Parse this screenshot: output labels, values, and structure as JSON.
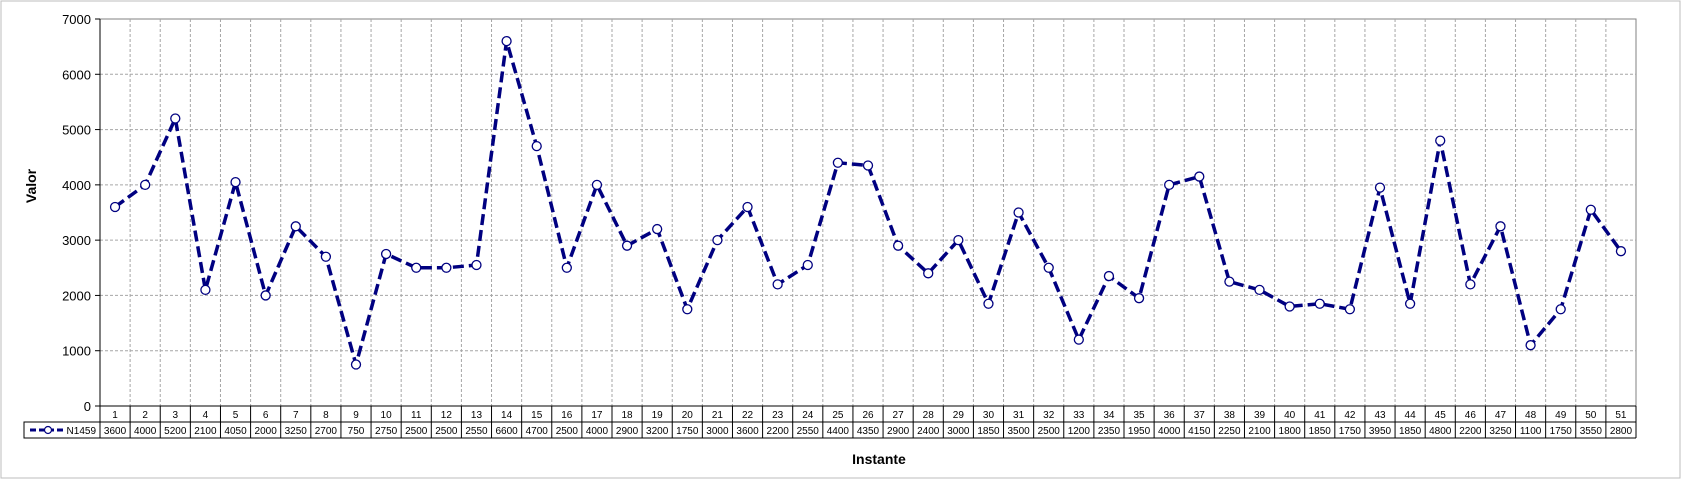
{
  "chart_data": {
    "type": "line",
    "xlabel": "Instante",
    "ylabel": "Valor",
    "ylim": [
      0,
      7000
    ],
    "yticks": [
      0,
      1000,
      2000,
      3000,
      4000,
      5000,
      6000,
      7000
    ],
    "categories": [
      "1",
      "2",
      "3",
      "4",
      "5",
      "6",
      "7",
      "8",
      "9",
      "10",
      "11",
      "12",
      "13",
      "14",
      "15",
      "16",
      "17",
      "18",
      "19",
      "20",
      "21",
      "22",
      "23",
      "24",
      "25",
      "26",
      "27",
      "28",
      "29",
      "30",
      "31",
      "32",
      "33",
      "34",
      "35",
      "36",
      "37",
      "38",
      "39",
      "40",
      "41",
      "42",
      "43",
      "44",
      "45",
      "46",
      "47",
      "48",
      "49",
      "50",
      "51"
    ],
    "series": [
      {
        "name": "N1459",
        "color": "#000080",
        "line_style": "dashed",
        "marker": "hollow-circle",
        "values": [
          3600,
          4000,
          5200,
          2100,
          4050,
          2000,
          3250,
          2700,
          750,
          2750,
          2500,
          2500,
          2550,
          6600,
          4700,
          2500,
          4000,
          2900,
          3200,
          1750,
          3000,
          3600,
          2200,
          2550,
          4400,
          4350,
          2900,
          2400,
          3000,
          1850,
          3500,
          2500,
          1200,
          2350,
          1950,
          4000,
          4150,
          2250,
          2100,
          1800,
          1850,
          1750,
          3950,
          1850,
          4800,
          2200,
          3250,
          1100,
          1750,
          3550,
          2800
        ]
      }
    ],
    "grid": true,
    "legend": "data-table"
  }
}
